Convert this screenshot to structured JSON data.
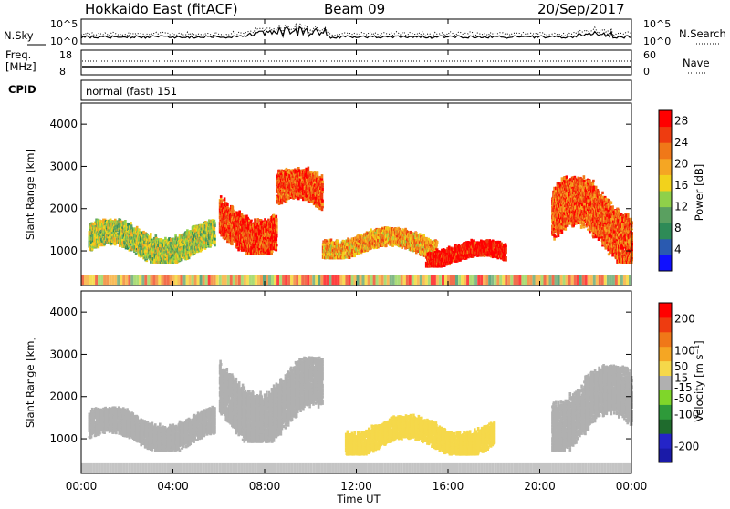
{
  "header": {
    "station": "Hokkaido East (fitACF)",
    "beam": "Beam 09",
    "date": "20/Sep/2017"
  },
  "top_panels": {
    "nsky_label": "N.Sky",
    "nsearch_label": "N.Search",
    "freq_label_line1": "Freq.",
    "freq_label_line2": "[MHz]",
    "nave_label": "Nave",
    "cpid_label": "CPID",
    "cpid_text": "normal (fast) 151",
    "nsky_ticks": [
      "10^5",
      "10^0"
    ],
    "nsearch_ticks": [
      "10^5",
      "10^0"
    ],
    "freq_ticks": [
      "18",
      "8"
    ],
    "nave_ticks": [
      "60",
      "0"
    ]
  },
  "colors": {
    "power_scale": [
      "#1010ff",
      "#2a5ab0",
      "#2e8b57",
      "#5aa060",
      "#8fd04a",
      "#f2d21c",
      "#f5a623",
      "#f07818",
      "#ee3c10",
      "#ff0000"
    ],
    "velocity_scale": [
      "#1a1aa8",
      "#2424c8",
      "#1f6b2d",
      "#2e9a3a",
      "#7fd62a",
      "#b0b0b0",
      "#f5d84a",
      "#f5a623",
      "#f07818",
      "#ee3c10",
      "#ff0000"
    ]
  },
  "chart_data": [
    {
      "type": "heatmap",
      "name_on_chart": "Power",
      "ylabel": "Slant Range [km]",
      "y_ticks": [
        "1000",
        "2000",
        "3000",
        "4000"
      ],
      "x_ticks": [
        "00:00",
        "04:00",
        "08:00",
        "12:00",
        "16:00",
        "20:00",
        "00:00"
      ],
      "ylim": [
        180,
        4500
      ],
      "colorbar_label": "Power [dB]",
      "colorbar_ticks": [
        "4",
        "8",
        "12",
        "16",
        "20",
        "24",
        "28"
      ],
      "colorbar_range": [
        0,
        30
      ],
      "echo_regions": [
        {
          "t_start": 0.3,
          "t_end": 5.8,
          "r_low": 700,
          "r_high": 1700,
          "level": 14
        },
        {
          "t_start": 6.0,
          "t_end": 8.5,
          "r_low": 900,
          "r_high": 2300,
          "level": 26
        },
        {
          "t_start": 8.5,
          "t_end": 10.5,
          "r_low": 1700,
          "r_high": 2900,
          "level": 25
        },
        {
          "t_start": 10.5,
          "t_end": 15.5,
          "r_low": 800,
          "r_high": 1500,
          "level": 20
        },
        {
          "t_start": 15.0,
          "t_end": 18.5,
          "r_low": 600,
          "r_high": 1200,
          "level": 29
        },
        {
          "t_start": 20.5,
          "t_end": 24.0,
          "r_low": 700,
          "r_high": 2700,
          "level": 24
        }
      ]
    },
    {
      "type": "heatmap",
      "name_on_chart": "Velocity",
      "ylabel": "Slant Range [km]",
      "y_ticks": [
        "1000",
        "2000",
        "3000",
        "4000"
      ],
      "x_ticks": [
        "00:00",
        "04:00",
        "08:00",
        "12:00",
        "16:00",
        "20:00",
        "00:00"
      ],
      "xlabel": "Time UT",
      "ylim": [
        180,
        4500
      ],
      "colorbar_label": "Velocity [m s⁻¹]",
      "colorbar_ticks": [
        "200",
        "100",
        "50",
        "15",
        "-15",
        "-50",
        "-100",
        "-200"
      ],
      "colorbar_range": [
        -250,
        250
      ],
      "echo_regions": [
        {
          "t_start": 0.3,
          "t_end": 5.8,
          "r_low": 700,
          "r_high": 1700,
          "level": 0
        },
        {
          "t_start": 6.0,
          "t_end": 10.5,
          "r_low": 900,
          "r_high": 2900,
          "level": -5
        },
        {
          "t_start": 11.5,
          "t_end": 18.0,
          "r_low": 600,
          "r_high": 1500,
          "level": 40
        },
        {
          "t_start": 20.5,
          "t_end": 24.0,
          "r_low": 700,
          "r_high": 2700,
          "level": 0
        }
      ]
    }
  ]
}
